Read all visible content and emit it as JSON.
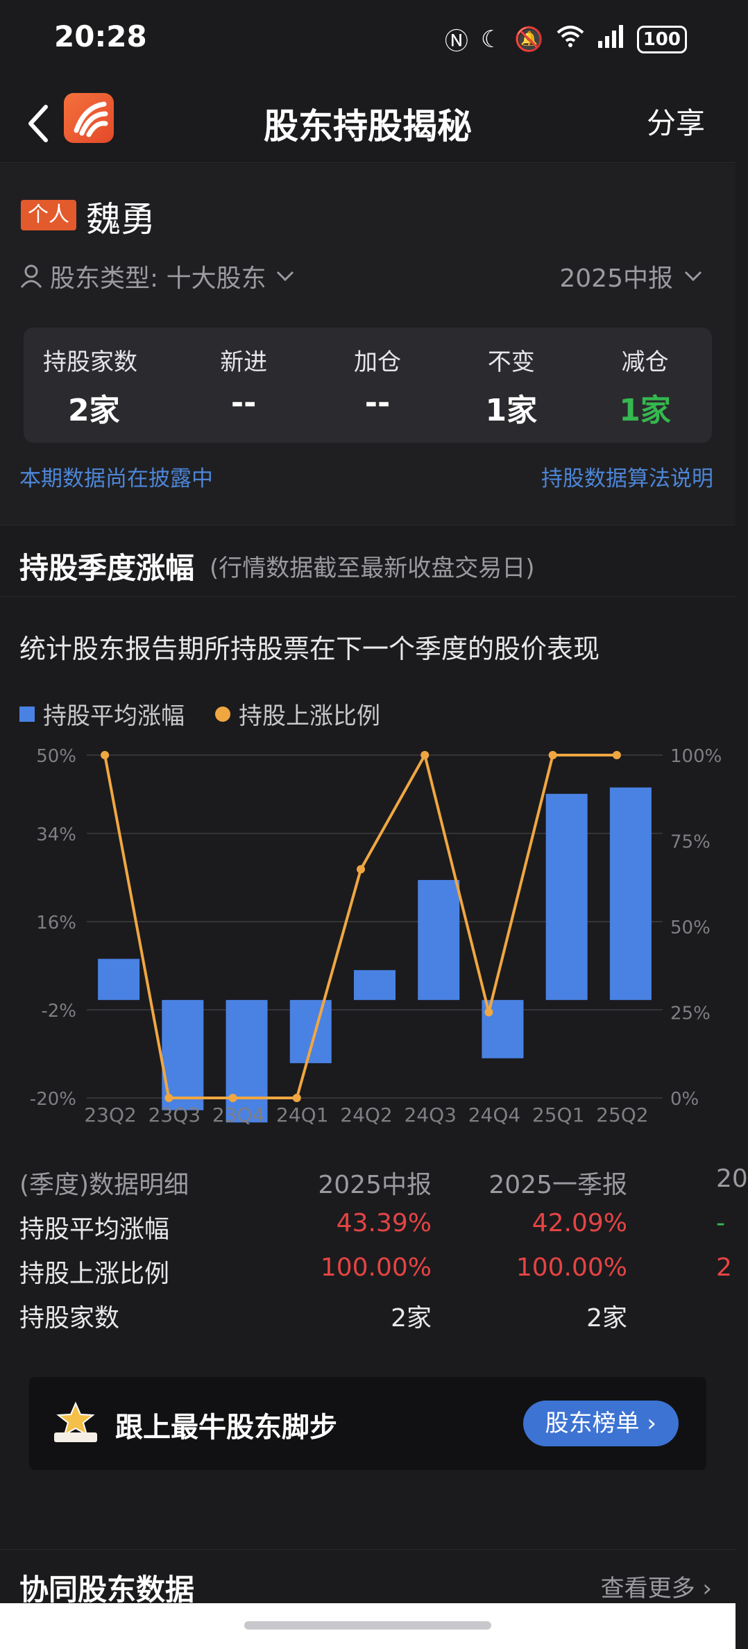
{
  "status": {
    "time": "20:28",
    "battery": "100"
  },
  "nav": {
    "title": "股东持股揭秘",
    "share": "分享"
  },
  "profile": {
    "tag": "个人",
    "name": "魏勇",
    "holder_type": "股东类型: 十大股东",
    "period": "2025中报",
    "stats": [
      {
        "label": "持股家数",
        "value": "2家"
      },
      {
        "label": "新进",
        "value": "--"
      },
      {
        "label": "加仓",
        "value": "--"
      },
      {
        "label": "不变",
        "value": "1家"
      },
      {
        "label": "减仓",
        "value": "1家"
      }
    ],
    "note_left": "本期数据尚在披露中",
    "note_right": "持股数据算法说明"
  },
  "section": {
    "title": "持股季度涨幅",
    "subtitle": "(行情数据截至最新收盘交易日)"
  },
  "chart_intro": "统计股东报告期所持股票在下一个季度的股价表现",
  "chart_data": {
    "type": "bar",
    "categories": [
      "23Q2",
      "23Q3",
      "23Q4",
      "24Q1",
      "24Q2",
      "24Q3",
      "24Q4",
      "25Q1",
      "25Q2"
    ],
    "series": [
      {
        "name": "持股平均涨幅",
        "type": "bar",
        "axis": "left",
        "values": [
          8.4,
          -22.5,
          -25.0,
          -12.9,
          6.1,
          24.5,
          -11.9,
          42.09,
          43.39
        ]
      },
      {
        "name": "持股上涨比例",
        "type": "line",
        "axis": "right",
        "values": [
          100,
          0,
          0,
          0,
          66.7,
          100,
          25,
          100,
          100
        ]
      }
    ],
    "left_axis": {
      "ticks": [
        "50%",
        "34%",
        "16%",
        "-2%",
        "-20%"
      ],
      "tick_values": [
        50,
        34,
        16,
        -2,
        -20
      ]
    },
    "right_axis": {
      "ticks": [
        "100%",
        "75%",
        "50%",
        "25%",
        "0%"
      ],
      "tick_values": [
        100,
        75,
        50,
        25,
        0
      ]
    },
    "colors": {
      "bar": "#4a82e3",
      "line": "#f0a742"
    },
    "grid": true,
    "legend": "top-left"
  },
  "detail": {
    "header": {
      "label": "(季度)数据明细",
      "c1": "2025中报",
      "c2": "2025一季报",
      "c3": "20"
    },
    "rows": [
      {
        "label": "持股平均涨幅",
        "c1": "43.39%",
        "c2": "42.09%",
        "c3": "-"
      },
      {
        "label": "持股上涨比例",
        "c1": "100.00%",
        "c2": "100.00%",
        "c3": "2"
      },
      {
        "label": "持股家数",
        "c1": "2家",
        "c2": "2家",
        "c3": ""
      }
    ]
  },
  "banner": {
    "text": "跟上最牛股东脚步",
    "button": "股东榜单 ›"
  },
  "coop": {
    "title": "协同股东数据",
    "more": "查看更多 ›"
  }
}
